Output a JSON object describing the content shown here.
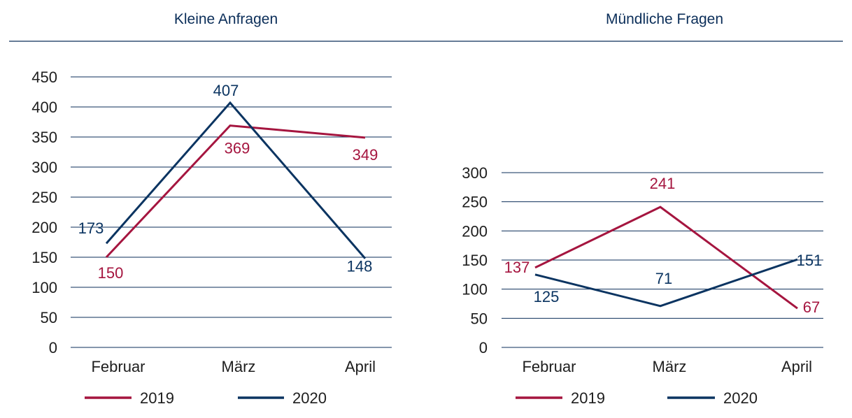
{
  "chart_data": [
    {
      "type": "line",
      "title": "Kleine Anfragen",
      "categories": [
        "Februar",
        "März",
        "April"
      ],
      "ylim": [
        0,
        450
      ],
      "yticks": [
        0,
        50,
        100,
        150,
        200,
        250,
        300,
        350,
        400,
        450
      ],
      "grid": true,
      "legend_position": "bottom",
      "series": [
        {
          "name": "2019",
          "color": "#a5153f",
          "values": [
            150,
            369,
            349
          ]
        },
        {
          "name": "2020",
          "color": "#0b3461",
          "values": [
            173,
            407,
            148
          ]
        }
      ]
    },
    {
      "type": "line",
      "title": "Mündliche Fragen",
      "categories": [
        "Februar",
        "März",
        "April"
      ],
      "ylim": [
        0,
        300
      ],
      "yticks": [
        0,
        50,
        100,
        150,
        200,
        250,
        300
      ],
      "grid": true,
      "legend_position": "bottom",
      "series": [
        {
          "name": "2019",
          "color": "#a5153f",
          "values": [
            137,
            241,
            67
          ]
        },
        {
          "name": "2020",
          "color": "#0b3461",
          "values": [
            125,
            71,
            151
          ]
        }
      ]
    }
  ]
}
